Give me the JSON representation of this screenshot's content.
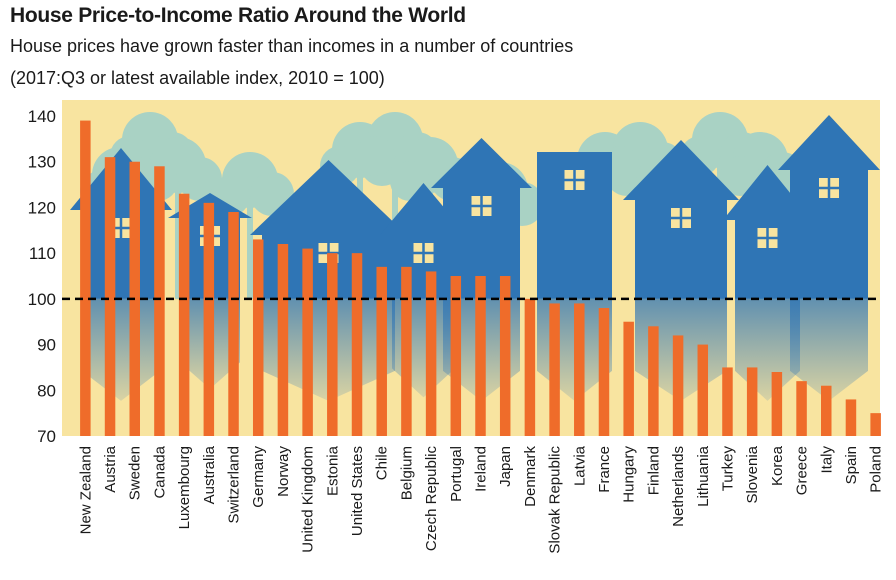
{
  "chart_data": {
    "type": "bar",
    "title": "House Price-to-Income Ratio Around the World",
    "subtitle": "House prices have grown faster than incomes in a number of countries",
    "note": "(2017:Q3 or latest available index, 2010 = 100)",
    "categories": [
      "New Zealand",
      "Austria",
      "Sweden",
      "Canada",
      "Luxembourg",
      "Australia",
      "Switzerland",
      "Germany",
      "Norway",
      "United Kingdom",
      "Estonia",
      "United States",
      "Chile",
      "Belgium",
      "Czech Republic",
      "Portugal",
      "Ireland",
      "Japan",
      "Denmark",
      "Slovak Republic",
      "Latvia",
      "France",
      "Hungary",
      "Finland",
      "Netherlands",
      "Lithuania",
      "Turkey",
      "Slovenia",
      "Korea",
      "Greece",
      "Italy",
      "Spain",
      "Poland"
    ],
    "values": [
      139,
      131,
      130,
      129,
      123,
      121,
      119,
      113,
      112,
      111,
      110,
      110,
      107,
      107,
      106,
      105,
      105,
      105,
      100,
      99,
      99,
      98,
      95,
      94,
      92,
      90,
      85,
      85,
      84,
      82,
      81,
      78,
      75
    ],
    "ylim": [
      70,
      140
    ],
    "yticks": [
      70,
      80,
      90,
      100,
      110,
      120,
      130,
      140
    ],
    "reference_line": 100,
    "grid": false,
    "colors": {
      "bar": "#ef6c2a",
      "background": "#f8e4a0",
      "house": "#2f75b5",
      "tree": "#a9d2c4",
      "reference_line": "#000000"
    }
  }
}
